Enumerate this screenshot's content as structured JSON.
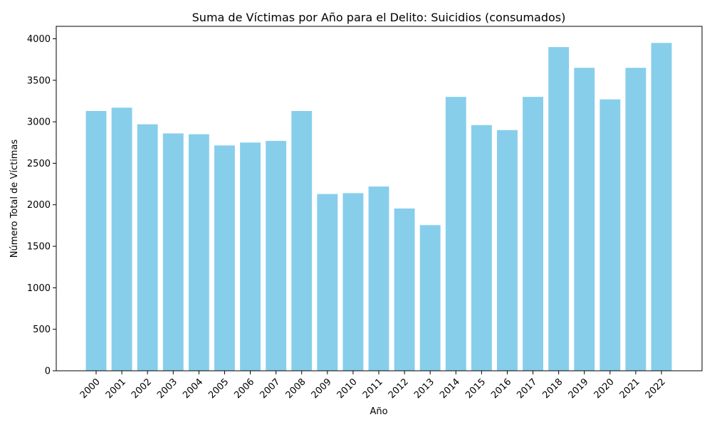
{
  "chart_data": {
    "type": "bar",
    "title": "Suma de Víctimas por Año para el Delito: Suicidios (consumados)",
    "xlabel": "Año",
    "ylabel": "Número Total de Víctimas",
    "categories": [
      "2000",
      "2001",
      "2002",
      "2003",
      "2004",
      "2005",
      "2006",
      "2007",
      "2008",
      "2009",
      "2010",
      "2011",
      "2012",
      "2013",
      "2014",
      "2015",
      "2016",
      "2017",
      "2018",
      "2019",
      "2020",
      "2021",
      "2022"
    ],
    "values": [
      3130,
      3170,
      2970,
      2860,
      2850,
      2715,
      2750,
      2770,
      3130,
      2130,
      2140,
      2220,
      1955,
      1755,
      3300,
      2960,
      2900,
      3300,
      3900,
      3650,
      3270,
      3650,
      3950
    ],
    "yticks": [
      0,
      500,
      1000,
      1500,
      2000,
      2500,
      3000,
      3500,
      4000
    ],
    "ylim": [
      0,
      4150
    ],
    "bar_color": "#87ceeb",
    "grid": false,
    "legend": false
  }
}
